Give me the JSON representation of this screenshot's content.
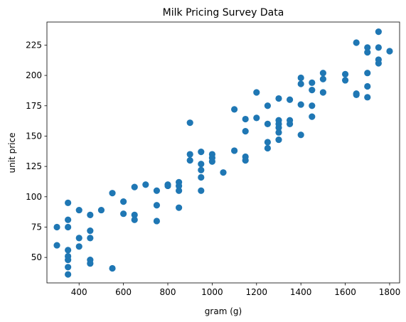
{
  "chart_data": {
    "type": "scatter",
    "title": "Milk Pricing Survey Data",
    "xlabel": "gram (g)",
    "ylabel": "unit price",
    "xlim": [
      255,
      1845
    ],
    "ylim": [
      29,
      244
    ],
    "xticks": [
      400,
      600,
      800,
      1000,
      1200,
      1400,
      1600,
      1800
    ],
    "yticks": [
      50,
      75,
      100,
      125,
      150,
      175,
      200,
      225
    ],
    "grid": false,
    "legend": "none",
    "marker_color": "#1f77b4",
    "points": [
      [
        300,
        75
      ],
      [
        300,
        60
      ],
      [
        350,
        95
      ],
      [
        350,
        81
      ],
      [
        350,
        75
      ],
      [
        350,
        56
      ],
      [
        350,
        51
      ],
      [
        350,
        48
      ],
      [
        350,
        42
      ],
      [
        350,
        36
      ],
      [
        400,
        89
      ],
      [
        400,
        66
      ],
      [
        400,
        59
      ],
      [
        450,
        85
      ],
      [
        450,
        72
      ],
      [
        450,
        66
      ],
      [
        450,
        48
      ],
      [
        450,
        45
      ],
      [
        500,
        89
      ],
      [
        550,
        103
      ],
      [
        550,
        41
      ],
      [
        600,
        96
      ],
      [
        600,
        86
      ],
      [
        650,
        108
      ],
      [
        650,
        85
      ],
      [
        650,
        81
      ],
      [
        700,
        110
      ],
      [
        750,
        105
      ],
      [
        750,
        93
      ],
      [
        750,
        80
      ],
      [
        800,
        110
      ],
      [
        800,
        109
      ],
      [
        850,
        112
      ],
      [
        850,
        109
      ],
      [
        850,
        105
      ],
      [
        850,
        91
      ],
      [
        900,
        161
      ],
      [
        900,
        135
      ],
      [
        900,
        130
      ],
      [
        950,
        137
      ],
      [
        950,
        127
      ],
      [
        950,
        122
      ],
      [
        950,
        116
      ],
      [
        950,
        105
      ],
      [
        1000,
        135
      ],
      [
        1000,
        132
      ],
      [
        1000,
        129
      ],
      [
        1050,
        120
      ],
      [
        1100,
        172
      ],
      [
        1100,
        138
      ],
      [
        1150,
        164
      ],
      [
        1150,
        154
      ],
      [
        1150,
        133
      ],
      [
        1150,
        130
      ],
      [
        1200,
        186
      ],
      [
        1200,
        165
      ],
      [
        1250,
        175
      ],
      [
        1250,
        160
      ],
      [
        1250,
        145
      ],
      [
        1250,
        140
      ],
      [
        1300,
        181
      ],
      [
        1300,
        163
      ],
      [
        1300,
        160
      ],
      [
        1300,
        157
      ],
      [
        1300,
        153
      ],
      [
        1300,
        147
      ],
      [
        1350,
        180
      ],
      [
        1350,
        163
      ],
      [
        1350,
        160
      ],
      [
        1400,
        198
      ],
      [
        1400,
        193
      ],
      [
        1400,
        176
      ],
      [
        1400,
        151
      ],
      [
        1450,
        194
      ],
      [
        1450,
        188
      ],
      [
        1450,
        175
      ],
      [
        1450,
        166
      ],
      [
        1500,
        202
      ],
      [
        1500,
        197
      ],
      [
        1500,
        186
      ],
      [
        1600,
        201
      ],
      [
        1600,
        196
      ],
      [
        1650,
        227
      ],
      [
        1650,
        185
      ],
      [
        1650,
        184
      ],
      [
        1700,
        223
      ],
      [
        1700,
        219
      ],
      [
        1700,
        202
      ],
      [
        1700,
        191
      ],
      [
        1700,
        182
      ],
      [
        1750,
        236
      ],
      [
        1750,
        223
      ],
      [
        1750,
        213
      ],
      [
        1750,
        210
      ],
      [
        1800,
        220
      ]
    ]
  }
}
